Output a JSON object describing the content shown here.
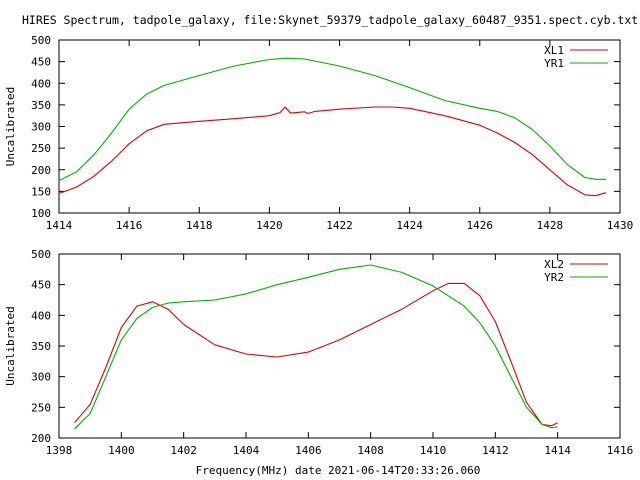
{
  "title": "HIRES Spectrum, tadpole_galaxy, file:Skynet_59379_tadpole_galaxy_60487_9351.spect.cyb.txt",
  "xlabel": "Frequency(MHz) date 2021-06-14T20:33:26.060",
  "colors": {
    "red": "#dd0000",
    "green": "#00b000",
    "axis": "#000000"
  },
  "chart_data": [
    {
      "type": "line",
      "ylabel": "Uncalibrated",
      "xlim": [
        1414,
        1430
      ],
      "ylim": [
        100,
        500
      ],
      "xticks": [
        "1414",
        "1416",
        "1418",
        "1420",
        "1422",
        "1424",
        "1426",
        "1428",
        "1430"
      ],
      "yticks": [
        "100",
        "150",
        "200",
        "250",
        "300",
        "350",
        "400",
        "450",
        "500"
      ],
      "legend_position": "top-right",
      "series": [
        {
          "name": "XL1",
          "color": "#dd0000",
          "x": [
            1414.0,
            1414.5,
            1415.0,
            1415.5,
            1416.0,
            1416.5,
            1417.0,
            1418.0,
            1419.0,
            1420.0,
            1420.3,
            1420.45,
            1420.6,
            1421.0,
            1421.1,
            1421.3,
            1422.0,
            1423.0,
            1423.5,
            1424.0,
            1425.0,
            1426.0,
            1426.5,
            1427.0,
            1427.5,
            1428.0,
            1428.5,
            1429.0,
            1429.3,
            1429.6
          ],
          "y": [
            145,
            160,
            185,
            220,
            260,
            290,
            305,
            312,
            318,
            325,
            332,
            345,
            331,
            334,
            330,
            335,
            340,
            345,
            345,
            342,
            325,
            303,
            285,
            263,
            235,
            200,
            165,
            142,
            140,
            147
          ]
        },
        {
          "name": "YR1",
          "color": "#00b000",
          "x": [
            1414.0,
            1414.5,
            1415.0,
            1415.5,
            1416.0,
            1416.5,
            1417.0,
            1418.0,
            1419.0,
            1420.0,
            1420.5,
            1421.0,
            1422.0,
            1423.0,
            1424.0,
            1425.0,
            1426.0,
            1426.5,
            1427.0,
            1427.5,
            1428.0,
            1428.5,
            1429.0,
            1429.3,
            1429.6
          ],
          "y": [
            175,
            195,
            235,
            285,
            340,
            375,
            395,
            418,
            440,
            455,
            458,
            456,
            440,
            418,
            390,
            360,
            342,
            335,
            320,
            293,
            255,
            212,
            182,
            178,
            178
          ]
        }
      ]
    },
    {
      "type": "line",
      "ylabel": "Uncalibrated",
      "xlim": [
        1398,
        1416
      ],
      "ylim": [
        200,
        500
      ],
      "xticks": [
        "1398",
        "1400",
        "1402",
        "1404",
        "1406",
        "1408",
        "1410",
        "1412",
        "1414",
        "1416"
      ],
      "yticks": [
        "200",
        "250",
        "300",
        "350",
        "400",
        "450",
        "500"
      ],
      "legend_position": "top-right",
      "series": [
        {
          "name": "XL2",
          "color": "#dd0000",
          "x": [
            1398.5,
            1399.0,
            1399.5,
            1400.0,
            1400.5,
            1401.0,
            1401.5,
            1402.0,
            1403.0,
            1404.0,
            1405.0,
            1406.0,
            1407.0,
            1408.0,
            1409.0,
            1410.0,
            1410.5,
            1411.0,
            1411.5,
            1412.0,
            1412.5,
            1413.0,
            1413.5,
            1413.8,
            1414.0
          ],
          "y": [
            225,
            255,
            315,
            380,
            415,
            422,
            410,
            385,
            352,
            337,
            332,
            340,
            360,
            385,
            410,
            440,
            452,
            452,
            432,
            390,
            325,
            258,
            222,
            220,
            225
          ]
        },
        {
          "name": "YR2",
          "color": "#00b000",
          "x": [
            1398.5,
            1399.0,
            1399.5,
            1400.0,
            1400.5,
            1401.0,
            1401.5,
            1402.0,
            1403.0,
            1404.0,
            1405.0,
            1406.0,
            1407.0,
            1408.0,
            1409.0,
            1410.0,
            1411.0,
            1411.5,
            1412.0,
            1412.5,
            1413.0,
            1413.5,
            1413.8,
            1414.0
          ],
          "y": [
            215,
            240,
            300,
            360,
            395,
            413,
            420,
            422,
            425,
            435,
            450,
            462,
            475,
            482,
            470,
            448,
            415,
            388,
            350,
            300,
            250,
            222,
            217,
            218
          ]
        }
      ]
    }
  ]
}
